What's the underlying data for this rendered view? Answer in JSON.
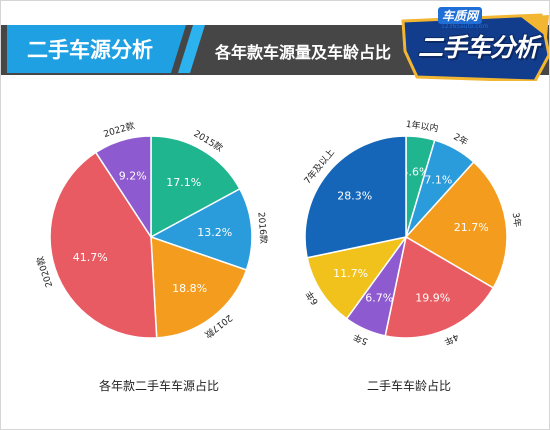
{
  "header": {
    "title": "二手车源分析",
    "subtitle": "各年款车源量及车龄占比",
    "badge": "二手车分析",
    "logo_text": "车质网",
    "logo_url": "12365auto.com"
  },
  "colors": {
    "header_dark": "#464646",
    "header_blue": "#1ea0e3",
    "badge_bg": "#123c8c",
    "badge_accent": "#f2b632"
  },
  "chart_data": [
    {
      "type": "pie",
      "title": "各年款二手车车源占比",
      "slices": [
        {
          "label": "2015款",
          "value": 17.1,
          "display": "17.1%",
          "color": "#1fb58f"
        },
        {
          "label": "2016款",
          "value": 13.2,
          "display": "13.2%",
          "color": "#2a9bdb"
        },
        {
          "label": "2017款",
          "value": 18.8,
          "display": "18.8%",
          "color": "#f39c1e"
        },
        {
          "label": "2020款",
          "value": 41.7,
          "display": "41.7%",
          "color": "#e95b62"
        },
        {
          "label": "2022款",
          "value": 9.2,
          "display": "9.2%",
          "color": "#8e5ad0"
        }
      ]
    },
    {
      "type": "pie",
      "title": "二手车车龄占比",
      "slices": [
        {
          "label": "1年以内",
          "value": 4.6,
          "display": "4.6%",
          "color": "#1fb58f"
        },
        {
          "label": "2年",
          "value": 7.1,
          "display": "7.1%",
          "color": "#2a9bdb"
        },
        {
          "label": "3年",
          "value": 21.7,
          "display": "21.7%",
          "color": "#f39c1e"
        },
        {
          "label": "4年",
          "value": 19.9,
          "display": "19.9%",
          "color": "#e95b62"
        },
        {
          "label": "5年",
          "value": 6.7,
          "display": "6.7%",
          "color": "#8e5ad0"
        },
        {
          "label": "6年",
          "value": 11.7,
          "display": "11.7%",
          "color": "#f1c21b"
        },
        {
          "label": "7年及以上",
          "value": 28.3,
          "display": "28.3%",
          "color": "#1566b8"
        }
      ]
    }
  ]
}
